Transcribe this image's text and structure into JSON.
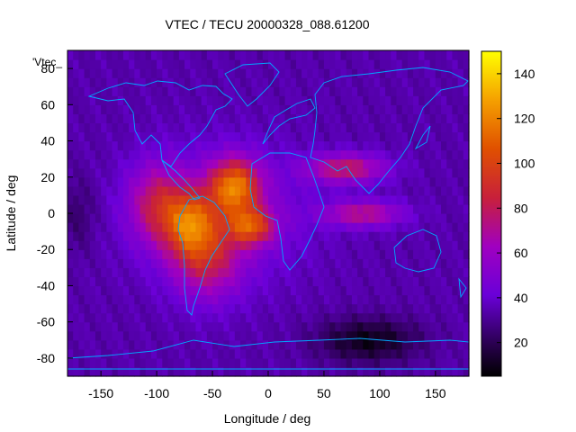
{
  "chart_data": {
    "type": "heatmap",
    "title": "VTEC / TECU 20000328_088.61200",
    "xlabel": "Longitude / deg",
    "ylabel": "Latitude / deg",
    "legend_label": "'Vtec_",
    "xlim": [
      -180,
      180
    ],
    "ylim": [
      -90,
      90
    ],
    "xticks": [
      -150,
      -100,
      -50,
      0,
      50,
      100,
      150
    ],
    "yticks": [
      -80,
      -60,
      -40,
      -20,
      0,
      20,
      40,
      60,
      80
    ],
    "colorbar": {
      "min": 5,
      "max": 150,
      "ticks": [
        20,
        40,
        60,
        80,
        100,
        120,
        140
      ]
    },
    "grid_step_deg": 5,
    "features": [
      {
        "lon": -30,
        "lat": 15,
        "peak": 72,
        "sx": 22,
        "sy": 15
      },
      {
        "lon": -15,
        "lat": -7,
        "peak": 55,
        "sx": 20,
        "sy": 10
      },
      {
        "lon": -70,
        "lat": -5,
        "peak": 55,
        "sx": 22,
        "sy": 18
      },
      {
        "lon": -55,
        "lat": -25,
        "peak": 40,
        "sx": 30,
        "sy": 22
      },
      {
        "lon": -100,
        "lat": 5,
        "peak": 40,
        "sx": 25,
        "sy": 22
      },
      {
        "lon": 70,
        "lat": 25,
        "peak": 45,
        "sx": 35,
        "sy": 8
      },
      {
        "lon": 85,
        "lat": 0,
        "peak": 40,
        "sx": 35,
        "sy": 7
      },
      {
        "lon": -40,
        "lat": 0,
        "peak": 20,
        "sx": 70,
        "sy": 35
      }
    ],
    "troughs": [
      {
        "lon": 90,
        "lat": -70,
        "depth": 25,
        "sx": 45,
        "sy": 12
      },
      {
        "lon": -170,
        "lat": 0,
        "depth": 10,
        "sx": 15,
        "sy": 20
      }
    ],
    "background_level": 34
  },
  "colors": {
    "coastline": "#00a8ff",
    "axis": "#000000"
  }
}
